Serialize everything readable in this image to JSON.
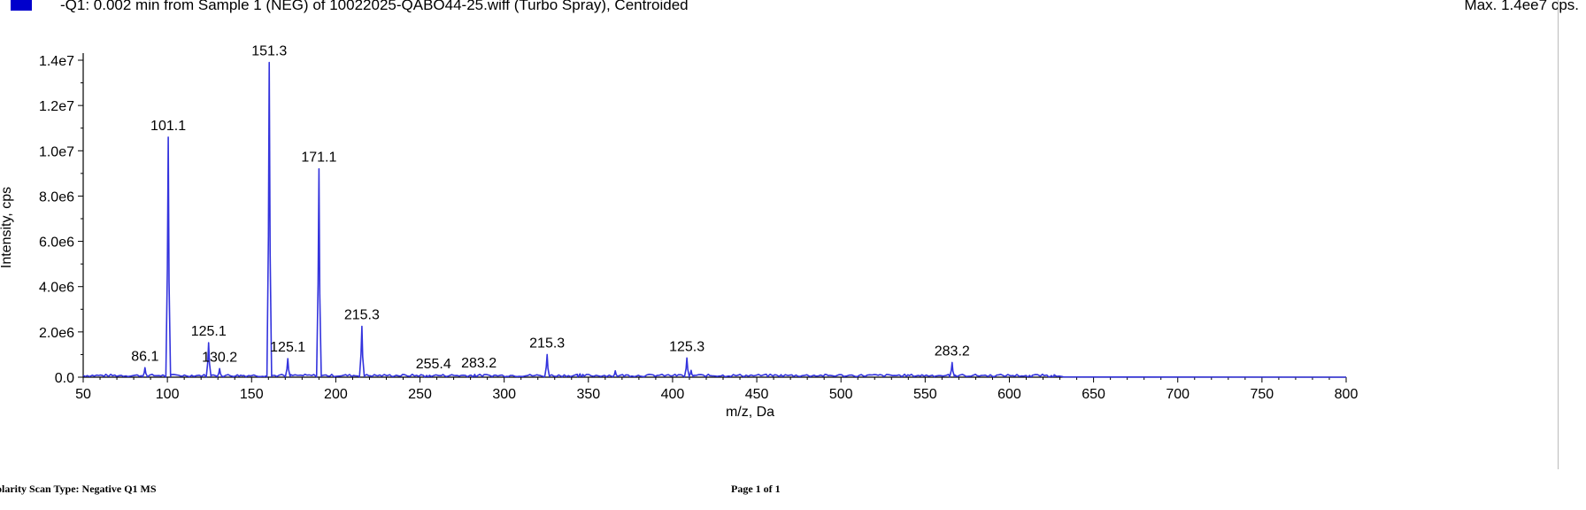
{
  "header": {
    "title": "-Q1: 0.002 min from Sample 1 (NEG) of 10022025-QABO44-25.wiff (Turbo Spray), Centroided",
    "max_label": "Max. 1.4ee7 cps."
  },
  "footer": {
    "scan_type": "olarity Scan Type: Negative Q1 MS",
    "page": "Page 1 of 1"
  },
  "colors": {
    "trace": "#3333dd",
    "axis": "#000000",
    "legend": "#0000cc"
  },
  "chart_data": {
    "type": "line",
    "title": "",
    "xlabel": "m/z, Da",
    "ylabel": "Intensity, cps",
    "xlim": [
      50,
      800
    ],
    "ylim": [
      0,
      14000000
    ],
    "x_ticks": [
      50,
      100,
      150,
      200,
      250,
      300,
      350,
      400,
      450,
      500,
      550,
      600,
      650,
      700,
      750,
      800
    ],
    "y_ticks": [
      {
        "value": 0,
        "label": "0.0"
      },
      {
        "value": 2000000,
        "label": "2.0e6"
      },
      {
        "value": 4000000,
        "label": "4.0e6"
      },
      {
        "value": 6000000,
        "label": "6.0e6"
      },
      {
        "value": 8000000,
        "label": "8.0e6"
      },
      {
        "value": 10000000,
        "label": "1.0e7"
      },
      {
        "value": 12000000,
        "label": "1.2e7"
      },
      {
        "value": 14000000,
        "label": "1.4e7"
      }
    ],
    "grid": false,
    "series": [
      {
        "peaks": [
          {
            "x": 86.7,
            "y": 420000
          },
          {
            "x": 100.5,
            "y": 10600000
          },
          {
            "x": 124.5,
            "y": 1520000
          },
          {
            "x": 131.0,
            "y": 380000
          },
          {
            "x": 160.5,
            "y": 13900000
          },
          {
            "x": 171.5,
            "y": 820000
          },
          {
            "x": 190.0,
            "y": 9200000
          },
          {
            "x": 215.5,
            "y": 2250000
          },
          {
            "x": 254.0,
            "y": 80000
          },
          {
            "x": 282.5,
            "y": 120000
          },
          {
            "x": 325.5,
            "y": 1000000
          },
          {
            "x": 345.0,
            "y": 150000
          },
          {
            "x": 366.0,
            "y": 280000
          },
          {
            "x": 408.5,
            "y": 850000
          },
          {
            "x": 411.0,
            "y": 300000
          },
          {
            "x": 566.0,
            "y": 650000
          },
          {
            "x": 612.0,
            "y": 80000
          },
          {
            "x": 625.0,
            "y": 70000
          }
        ],
        "baseline_end": 632
      }
    ],
    "annotations": [
      {
        "text": "86.1",
        "x": 86.7,
        "y": 420000
      },
      {
        "text": "101.1",
        "x": 100.5,
        "y": 10600000
      },
      {
        "text": "125.1",
        "x": 124.5,
        "y": 1520000
      },
      {
        "text": "130.2",
        "x": 131.0,
        "y": 380000
      },
      {
        "text": "151.3",
        "x": 160.5,
        "y": 13900000
      },
      {
        "text": "125.1",
        "x": 171.5,
        "y": 820000
      },
      {
        "text": "171.1",
        "x": 190.0,
        "y": 9200000
      },
      {
        "text": "215.3",
        "x": 215.5,
        "y": 2250000
      },
      {
        "text": "255.4",
        "x": 258.0,
        "y": 80000
      },
      {
        "text": "283.2",
        "x": 285.0,
        "y": 120000
      },
      {
        "text": "215.3",
        "x": 325.5,
        "y": 1000000
      },
      {
        "text": "125.3",
        "x": 408.5,
        "y": 850000
      },
      {
        "text": "283.2",
        "x": 566.0,
        "y": 650000
      }
    ]
  }
}
